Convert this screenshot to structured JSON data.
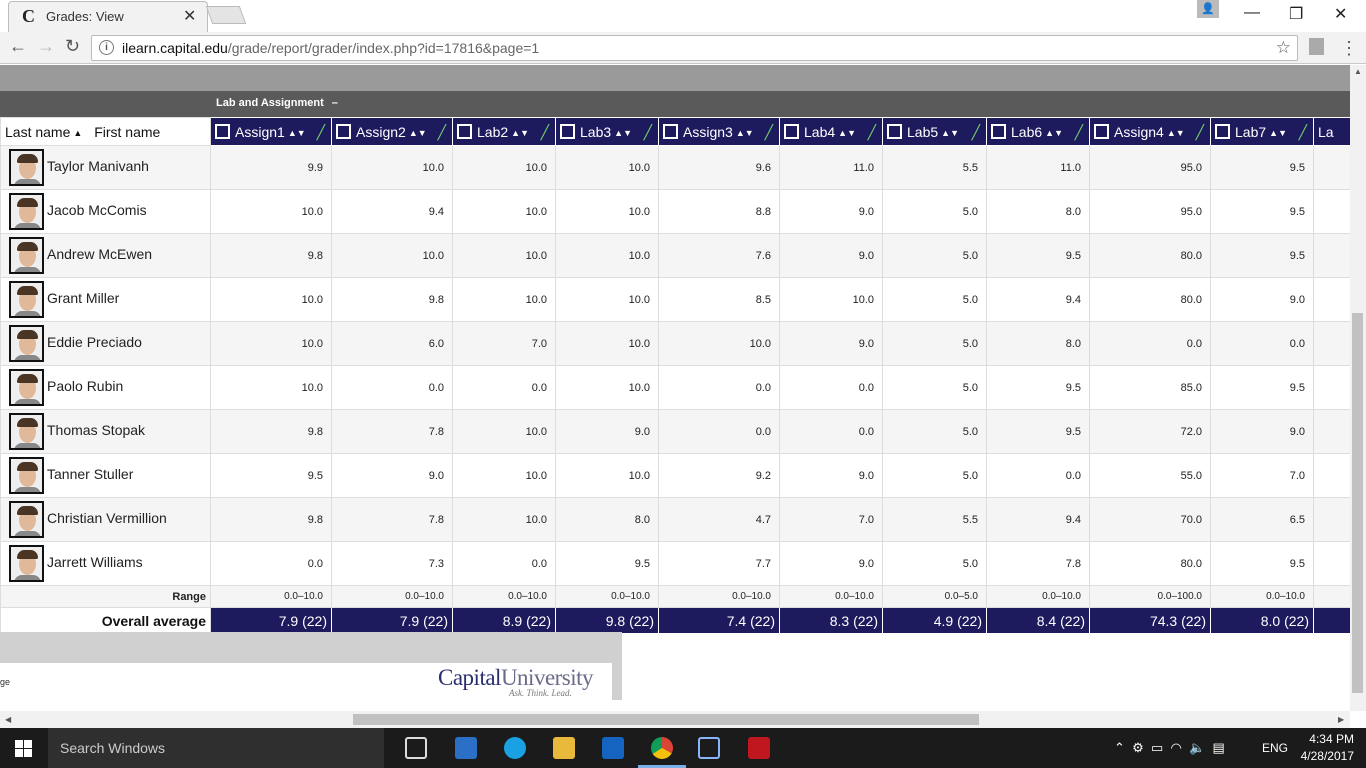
{
  "browser": {
    "tab_title": "Grades: View",
    "tab_favicon": "C",
    "url_domain": "ilearn.capital.edu",
    "url_path": "/grade/report/grader/index.php?id=17816&page=1"
  },
  "category": {
    "name": "Lab and Assignment",
    "toggle": "–"
  },
  "name_header": {
    "last": "Last name",
    "first": "First name"
  },
  "columns": [
    "Assign1",
    "Assign2",
    "Lab2",
    "Lab3",
    "Assign3",
    "Lab4",
    "Lab5",
    "Lab6",
    "Assign4",
    "Lab7"
  ],
  "cut_column": "La",
  "students": [
    {
      "name": "Taylor Manivanh",
      "grades": [
        "9.9",
        "10.0",
        "10.0",
        "10.0",
        "9.6",
        "11.0",
        "5.5",
        "11.0",
        "95.0",
        "9.5"
      ]
    },
    {
      "name": "Jacob McComis",
      "grades": [
        "10.0",
        "9.4",
        "10.0",
        "10.0",
        "8.8",
        "9.0",
        "5.0",
        "8.0",
        "95.0",
        "9.5"
      ]
    },
    {
      "name": "Andrew McEwen",
      "grades": [
        "9.8",
        "10.0",
        "10.0",
        "10.0",
        "7.6",
        "9.0",
        "5.0",
        "9.5",
        "80.0",
        "9.5"
      ]
    },
    {
      "name": "Grant Miller",
      "grades": [
        "10.0",
        "9.8",
        "10.0",
        "10.0",
        "8.5",
        "10.0",
        "5.0",
        "9.4",
        "80.0",
        "9.0"
      ]
    },
    {
      "name": "Eddie Preciado",
      "grades": [
        "10.0",
        "6.0",
        "7.0",
        "10.0",
        "10.0",
        "9.0",
        "5.0",
        "8.0",
        "0.0",
        "0.0"
      ]
    },
    {
      "name": "Paolo Rubin",
      "grades": [
        "10.0",
        "0.0",
        "0.0",
        "10.0",
        "0.0",
        "0.0",
        "5.0",
        "9.5",
        "85.0",
        "9.5"
      ]
    },
    {
      "name": "Thomas Stopak",
      "grades": [
        "9.8",
        "7.8",
        "10.0",
        "9.0",
        "0.0",
        "0.0",
        "5.0",
        "9.5",
        "72.0",
        "9.0"
      ]
    },
    {
      "name": "Tanner Stuller",
      "grades": [
        "9.5",
        "9.0",
        "10.0",
        "10.0",
        "9.2",
        "9.0",
        "5.0",
        "0.0",
        "55.0",
        "7.0"
      ]
    },
    {
      "name": "Christian Vermillion",
      "grades": [
        "9.8",
        "7.8",
        "10.0",
        "8.0",
        "4.7",
        "7.0",
        "5.5",
        "9.4",
        "70.0",
        "6.5"
      ]
    },
    {
      "name": "Jarrett Williams",
      "grades": [
        "0.0",
        "7.3",
        "0.0",
        "9.5",
        "7.7",
        "9.0",
        "5.0",
        "7.8",
        "80.0",
        "9.5"
      ]
    }
  ],
  "range": {
    "label": "Range",
    "values": [
      "0.0–10.0",
      "0.0–10.0",
      "0.0–10.0",
      "0.0–10.0",
      "0.0–10.0",
      "0.0–10.0",
      "0.0–5.0",
      "0.0–10.0",
      "0.0–100.0",
      "0.0–10.0"
    ]
  },
  "overall": {
    "label": "Overall average",
    "values": [
      "7.9 (22)",
      "7.9 (22)",
      "8.9 (22)",
      "9.8 (22)",
      "7.4 (22)",
      "8.3 (22)",
      "4.9 (22)",
      "8.4 (22)",
      "74.3 (22)",
      "8.0 (22)"
    ]
  },
  "footer": {
    "left_text": "ge",
    "logo": "CapitalUniversity",
    "tagline": "Ask. Think. Lead."
  },
  "taskbar": {
    "search_placeholder": "Search Windows",
    "lang": "ENG",
    "time": "4:34 PM",
    "date": "4/28/2017"
  },
  "colors": {
    "header_navy": "#1e1a5e",
    "edit_green": "#6fd06f",
    "category_gray": "#5a5a5a"
  },
  "icons": {
    "edit": "edit-icon",
    "sort": "sort-icon",
    "quick-edit": "pencil-icon",
    "back": "back-arrow-icon",
    "forward": "forward-arrow-icon",
    "reload": "reload-icon",
    "bookmark": "star-icon",
    "menu": "menu-icon"
  }
}
